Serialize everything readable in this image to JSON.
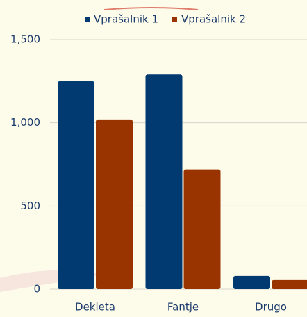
{
  "chart_data": {
    "type": "bar",
    "categories": [
      "Dekleta",
      "Fantje",
      "Drugo"
    ],
    "series": [
      {
        "name": "Vprašalnik 1",
        "color": "#003a70",
        "values": [
          1250,
          1290,
          80
        ]
      },
      {
        "name": "Vprašalnik 2",
        "color": "#993300",
        "values": [
          1020,
          720,
          55
        ]
      }
    ],
    "ylim": [
      0,
      1500
    ],
    "yticks": [
      0,
      500,
      {
        "value": 1000,
        "label": "1,000"
      },
      {
        "value": 1500,
        "label": "1,500"
      }
    ],
    "grid": true,
    "legend": "top"
  }
}
